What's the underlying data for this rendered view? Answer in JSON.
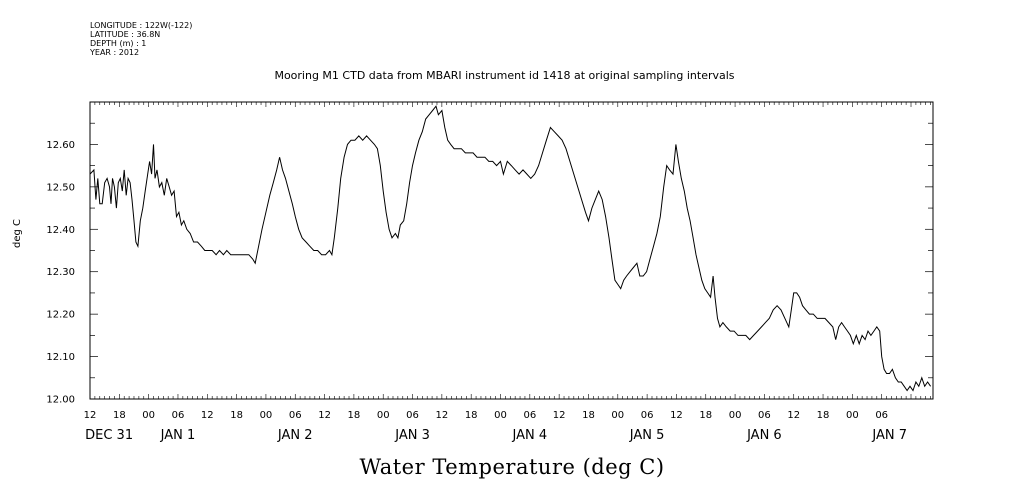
{
  "header": {
    "meta_lines": [
      "LONGITUDE : 122W(-122)",
      "LATITUDE : 36.8N",
      "DEPTH (m) : 1",
      "YEAR : 2012"
    ]
  },
  "chart_data": {
    "type": "line",
    "title": "Mooring M1 CTD data from MBARI instrument id 1418 at original sampling intervals",
    "xlabel": "",
    "ylabel": "deg C",
    "caption": "Water Temperature (deg C)",
    "ylim": [
      12.0,
      12.7
    ],
    "xlim_hours": [
      0,
      165
    ],
    "grid": false,
    "y_ticks": [
      "12.00",
      "12.10",
      "12.20",
      "12.30",
      "12.40",
      "12.50",
      "12.60"
    ],
    "hour_ticks": [
      "12",
      "18",
      "00",
      "06",
      "12",
      "18",
      "00",
      "06",
      "12",
      "18",
      "00",
      "06",
      "12",
      "18",
      "00",
      "06",
      "12",
      "18",
      "00",
      "06",
      "12",
      "18",
      "00",
      "06",
      "12",
      "18",
      "00",
      "06"
    ],
    "day_labels": [
      "DEC 31",
      "JAN 1",
      "JAN 2",
      "JAN 3",
      "JAN 4",
      "JAN 5",
      "JAN 6",
      "JAN 7"
    ],
    "x_reference": "hours after DEC 31 12:00",
    "points": [
      [
        0,
        12.53
      ],
      [
        0.8,
        12.54
      ],
      [
        1.2,
        12.47
      ],
      [
        1.6,
        12.52
      ],
      [
        2,
        12.46
      ],
      [
        2.5,
        12.46
      ],
      [
        3,
        12.51
      ],
      [
        3.5,
        12.52
      ],
      [
        4,
        12.5
      ],
      [
        4.3,
        12.46
      ],
      [
        4.6,
        12.52
      ],
      [
        5,
        12.5
      ],
      [
        5.4,
        12.45
      ],
      [
        5.8,
        12.51
      ],
      [
        6.2,
        12.52
      ],
      [
        6.6,
        12.49
      ],
      [
        7,
        12.54
      ],
      [
        7.4,
        12.48
      ],
      [
        7.8,
        12.52
      ],
      [
        8.2,
        12.51
      ],
      [
        8.6,
        12.47
      ],
      [
        9,
        12.42
      ],
      [
        9.4,
        12.37
      ],
      [
        9.8,
        12.36
      ],
      [
        10.3,
        12.42
      ],
      [
        10.8,
        12.45
      ],
      [
        11.3,
        12.49
      ],
      [
        11.8,
        12.53
      ],
      [
        12.2,
        12.56
      ],
      [
        12.6,
        12.53
      ],
      [
        13,
        12.6
      ],
      [
        13.3,
        12.52
      ],
      [
        13.7,
        12.54
      ],
      [
        14.2,
        12.5
      ],
      [
        14.7,
        12.51
      ],
      [
        15.2,
        12.48
      ],
      [
        15.7,
        12.52
      ],
      [
        16.2,
        12.5
      ],
      [
        16.7,
        12.48
      ],
      [
        17.2,
        12.49
      ],
      [
        17.7,
        12.43
      ],
      [
        18.2,
        12.44
      ],
      [
        18.7,
        12.41
      ],
      [
        19.2,
        12.42
      ],
      [
        19.8,
        12.4
      ],
      [
        20.5,
        12.39
      ],
      [
        21.2,
        12.37
      ],
      [
        22,
        12.37
      ],
      [
        22.8,
        12.36
      ],
      [
        23.5,
        12.35
      ],
      [
        24.3,
        12.35
      ],
      [
        25,
        12.35
      ],
      [
        25.8,
        12.34
      ],
      [
        26.5,
        12.35
      ],
      [
        27.3,
        12.34
      ],
      [
        28,
        12.35
      ],
      [
        28.8,
        12.34
      ],
      [
        29.5,
        12.34
      ],
      [
        30.3,
        12.34
      ],
      [
        31,
        12.34
      ],
      [
        31.8,
        12.34
      ],
      [
        32.5,
        12.34
      ],
      [
        33.3,
        12.33
      ],
      [
        33.8,
        12.32
      ],
      [
        34.5,
        12.36
      ],
      [
        35.2,
        12.4
      ],
      [
        36,
        12.44
      ],
      [
        36.8,
        12.48
      ],
      [
        37.5,
        12.51
      ],
      [
        38.2,
        12.54
      ],
      [
        38.8,
        12.57
      ],
      [
        39.4,
        12.54
      ],
      [
        40,
        12.52
      ],
      [
        40.7,
        12.49
      ],
      [
        41.4,
        12.46
      ],
      [
        42,
        12.43
      ],
      [
        42.7,
        12.4
      ],
      [
        43.4,
        12.38
      ],
      [
        44.2,
        12.37
      ],
      [
        45,
        12.36
      ],
      [
        45.8,
        12.35
      ],
      [
        46.6,
        12.35
      ],
      [
        47.4,
        12.34
      ],
      [
        48.2,
        12.34
      ],
      [
        49,
        12.35
      ],
      [
        49.5,
        12.34
      ],
      [
        50,
        12.38
      ],
      [
        50.7,
        12.45
      ],
      [
        51.3,
        12.52
      ],
      [
        52,
        12.57
      ],
      [
        52.7,
        12.6
      ],
      [
        53.4,
        12.61
      ],
      [
        54.2,
        12.61
      ],
      [
        55,
        12.62
      ],
      [
        55.8,
        12.61
      ],
      [
        56.6,
        12.62
      ],
      [
        57.4,
        12.61
      ],
      [
        58.2,
        12.6
      ],
      [
        58.8,
        12.59
      ],
      [
        59.4,
        12.55
      ],
      [
        60,
        12.49
      ],
      [
        60.6,
        12.44
      ],
      [
        61.2,
        12.4
      ],
      [
        61.8,
        12.38
      ],
      [
        62.5,
        12.39
      ],
      [
        63,
        12.38
      ],
      [
        63.5,
        12.41
      ],
      [
        64.2,
        12.42
      ],
      [
        64.8,
        12.46
      ],
      [
        65.4,
        12.51
      ],
      [
        66,
        12.55
      ],
      [
        66.6,
        12.58
      ],
      [
        67.3,
        12.61
      ],
      [
        68,
        12.63
      ],
      [
        68.7,
        12.66
      ],
      [
        69.4,
        12.67
      ],
      [
        70.1,
        12.68
      ],
      [
        70.8,
        12.69
      ],
      [
        71.3,
        12.67
      ],
      [
        72,
        12.68
      ],
      [
        72.6,
        12.64
      ],
      [
        73.2,
        12.61
      ],
      [
        73.8,
        12.6
      ],
      [
        74.5,
        12.59
      ],
      [
        75.2,
        12.59
      ],
      [
        76,
        12.59
      ],
      [
        76.8,
        12.58
      ],
      [
        77.6,
        12.58
      ],
      [
        78.4,
        12.58
      ],
      [
        79.2,
        12.57
      ],
      [
        80,
        12.57
      ],
      [
        80.8,
        12.57
      ],
      [
        81.6,
        12.56
      ],
      [
        82.4,
        12.56
      ],
      [
        83.2,
        12.55
      ],
      [
        84,
        12.56
      ],
      [
        84.6,
        12.53
      ],
      [
        85.4,
        12.56
      ],
      [
        86.2,
        12.55
      ],
      [
        87,
        12.54
      ],
      [
        87.8,
        12.53
      ],
      [
        88.6,
        12.54
      ],
      [
        89.4,
        12.53
      ],
      [
        90.2,
        12.52
      ],
      [
        91,
        12.53
      ],
      [
        91.8,
        12.55
      ],
      [
        92.6,
        12.58
      ],
      [
        93.4,
        12.61
      ],
      [
        94.2,
        12.64
      ],
      [
        95,
        12.63
      ],
      [
        95.8,
        12.62
      ],
      [
        96.6,
        12.61
      ],
      [
        97.4,
        12.59
      ],
      [
        98.2,
        12.56
      ],
      [
        99,
        12.53
      ],
      [
        99.8,
        12.5
      ],
      [
        100.6,
        12.47
      ],
      [
        101.4,
        12.44
      ],
      [
        102,
        12.42
      ],
      [
        102.7,
        12.45
      ],
      [
        103.4,
        12.47
      ],
      [
        104.1,
        12.49
      ],
      [
        104.8,
        12.47
      ],
      [
        105.5,
        12.43
      ],
      [
        106.2,
        12.38
      ],
      [
        106.8,
        12.33
      ],
      [
        107.4,
        12.28
      ],
      [
        108,
        12.27
      ],
      [
        108.6,
        12.26
      ],
      [
        109.2,
        12.28
      ],
      [
        109.8,
        12.29
      ],
      [
        110.5,
        12.3
      ],
      [
        111.2,
        12.31
      ],
      [
        111.9,
        12.32
      ],
      [
        112.5,
        12.29
      ],
      [
        113.2,
        12.29
      ],
      [
        113.9,
        12.3
      ],
      [
        114.6,
        12.33
      ],
      [
        115.3,
        12.36
      ],
      [
        116,
        12.39
      ],
      [
        116.7,
        12.43
      ],
      [
        117.4,
        12.5
      ],
      [
        118,
        12.55
      ],
      [
        118.6,
        12.54
      ],
      [
        119.3,
        12.53
      ],
      [
        119.9,
        12.6
      ],
      [
        120.4,
        12.56
      ],
      [
        121,
        12.52
      ],
      [
        121.6,
        12.49
      ],
      [
        122.2,
        12.45
      ],
      [
        122.8,
        12.42
      ],
      [
        123.4,
        12.38
      ],
      [
        124,
        12.34
      ],
      [
        124.6,
        12.31
      ],
      [
        125.2,
        12.28
      ],
      [
        125.8,
        12.26
      ],
      [
        126.4,
        12.25
      ],
      [
        127,
        12.24
      ],
      [
        127.5,
        12.29
      ],
      [
        127.9,
        12.24
      ],
      [
        128.4,
        12.19
      ],
      [
        128.9,
        12.17
      ],
      [
        129.5,
        12.18
      ],
      [
        130.2,
        12.17
      ],
      [
        131,
        12.16
      ],
      [
        131.8,
        12.16
      ],
      [
        132.6,
        12.15
      ],
      [
        133.4,
        12.15
      ],
      [
        134.2,
        12.15
      ],
      [
        135,
        12.14
      ],
      [
        135.8,
        12.15
      ],
      [
        136.6,
        12.16
      ],
      [
        137.4,
        12.17
      ],
      [
        138.2,
        12.18
      ],
      [
        139,
        12.19
      ],
      [
        139.8,
        12.21
      ],
      [
        140.6,
        12.22
      ],
      [
        141.4,
        12.21
      ],
      [
        142.2,
        12.19
      ],
      [
        143,
        12.17
      ],
      [
        143.5,
        12.21
      ],
      [
        144,
        12.25
      ],
      [
        144.6,
        12.25
      ],
      [
        145.2,
        12.24
      ],
      [
        145.8,
        12.22
      ],
      [
        146.5,
        12.21
      ],
      [
        147.2,
        12.2
      ],
      [
        148,
        12.2
      ],
      [
        148.8,
        12.19
      ],
      [
        149.6,
        12.19
      ],
      [
        150.4,
        12.19
      ],
      [
        151.2,
        12.18
      ],
      [
        152,
        12.17
      ],
      [
        152.6,
        12.14
      ],
      [
        153.2,
        12.17
      ],
      [
        153.8,
        12.18
      ],
      [
        154.4,
        12.17
      ],
      [
        155,
        12.16
      ],
      [
        155.6,
        12.15
      ],
      [
        156.2,
        12.13
      ],
      [
        156.8,
        12.15
      ],
      [
        157.4,
        12.13
      ],
      [
        158,
        12.15
      ],
      [
        158.6,
        12.14
      ],
      [
        159.2,
        12.16
      ],
      [
        159.8,
        12.15
      ],
      [
        160.4,
        12.16
      ],
      [
        161,
        12.17
      ],
      [
        161.6,
        12.16
      ],
      [
        162,
        12.1
      ],
      [
        162.5,
        12.07
      ],
      [
        163,
        12.06
      ],
      [
        163.6,
        12.06
      ],
      [
        164.2,
        12.07
      ],
      [
        164.8,
        12.05
      ],
      [
        165.4,
        12.04
      ],
      [
        166,
        12.04
      ],
      [
        166.6,
        12.03
      ],
      [
        167.2,
        12.02
      ],
      [
        167.8,
        12.03
      ],
      [
        168.4,
        12.02
      ],
      [
        169,
        12.04
      ],
      [
        169.6,
        12.03
      ],
      [
        170.2,
        12.05
      ],
      [
        170.8,
        12.03
      ],
      [
        171.4,
        12.04
      ],
      [
        172,
        12.03
      ]
    ]
  }
}
